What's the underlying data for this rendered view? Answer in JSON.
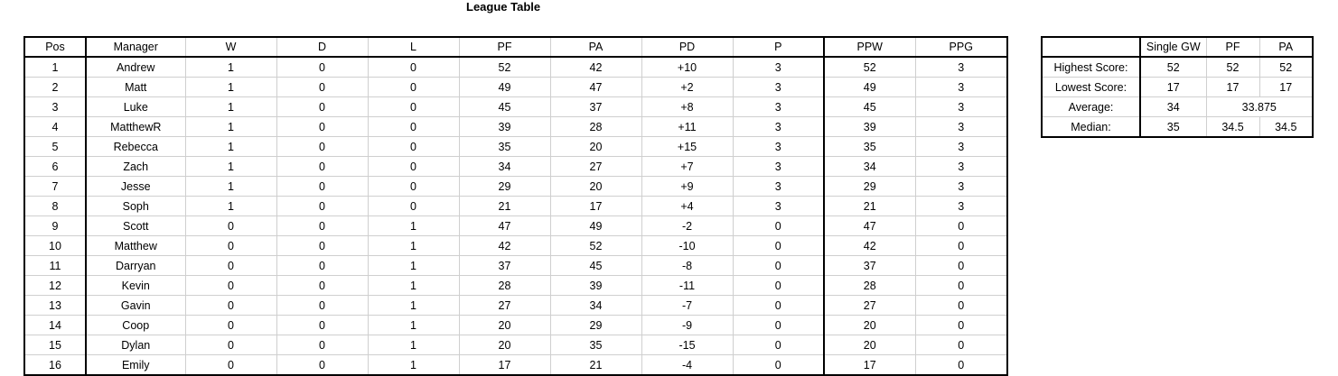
{
  "title": "League Table",
  "league": {
    "columns": [
      "Pos",
      "Manager",
      "W",
      "D",
      "L",
      "PF",
      "PA",
      "PD",
      "P",
      "PPW",
      "PPG"
    ],
    "rows": [
      [
        "1",
        "Andrew",
        "1",
        "0",
        "0",
        "52",
        "42",
        "+10",
        "3",
        "52",
        "3"
      ],
      [
        "2",
        "Matt",
        "1",
        "0",
        "0",
        "49",
        "47",
        "+2",
        "3",
        "49",
        "3"
      ],
      [
        "3",
        "Luke",
        "1",
        "0",
        "0",
        "45",
        "37",
        "+8",
        "3",
        "45",
        "3"
      ],
      [
        "4",
        "MatthewR",
        "1",
        "0",
        "0",
        "39",
        "28",
        "+11",
        "3",
        "39",
        "3"
      ],
      [
        "5",
        "Rebecca",
        "1",
        "0",
        "0",
        "35",
        "20",
        "+15",
        "3",
        "35",
        "3"
      ],
      [
        "6",
        "Zach",
        "1",
        "0",
        "0",
        "34",
        "27",
        "+7",
        "3",
        "34",
        "3"
      ],
      [
        "7",
        "Jesse",
        "1",
        "0",
        "0",
        "29",
        "20",
        "+9",
        "3",
        "29",
        "3"
      ],
      [
        "8",
        "Soph",
        "1",
        "0",
        "0",
        "21",
        "17",
        "+4",
        "3",
        "21",
        "3"
      ],
      [
        "9",
        "Scott",
        "0",
        "0",
        "1",
        "47",
        "49",
        "-2",
        "0",
        "47",
        "0"
      ],
      [
        "10",
        "Matthew",
        "0",
        "0",
        "1",
        "42",
        "52",
        "-10",
        "0",
        "42",
        "0"
      ],
      [
        "11",
        "Darryan",
        "0",
        "0",
        "1",
        "37",
        "45",
        "-8",
        "0",
        "37",
        "0"
      ],
      [
        "12",
        "Kevin",
        "0",
        "0",
        "1",
        "28",
        "39",
        "-11",
        "0",
        "28",
        "0"
      ],
      [
        "13",
        "Gavin",
        "0",
        "0",
        "1",
        "27",
        "34",
        "-7",
        "0",
        "27",
        "0"
      ],
      [
        "14",
        "Coop",
        "0",
        "0",
        "1",
        "20",
        "29",
        "-9",
        "0",
        "20",
        "0"
      ],
      [
        "15",
        "Dylan",
        "0",
        "0",
        "1",
        "20",
        "35",
        "-15",
        "0",
        "20",
        "0"
      ],
      [
        "16",
        "Emily",
        "0",
        "0",
        "1",
        "17",
        "21",
        "-4",
        "0",
        "17",
        "0"
      ]
    ]
  },
  "stats": {
    "columns": [
      "Single GW",
      "PF",
      "PA"
    ],
    "highest": {
      "label": "Highest Score:",
      "gw": "52",
      "pf": "52",
      "pa": "52"
    },
    "lowest": {
      "label": "Lowest Score:",
      "gw": "17",
      "pf": "17",
      "pa": "17"
    },
    "average": {
      "label": "Average:",
      "gw": "34",
      "pf_pa": "33.875"
    },
    "median": {
      "label": "Median:",
      "gw": "35",
      "pf": "34.5",
      "pa": "34.5"
    }
  }
}
